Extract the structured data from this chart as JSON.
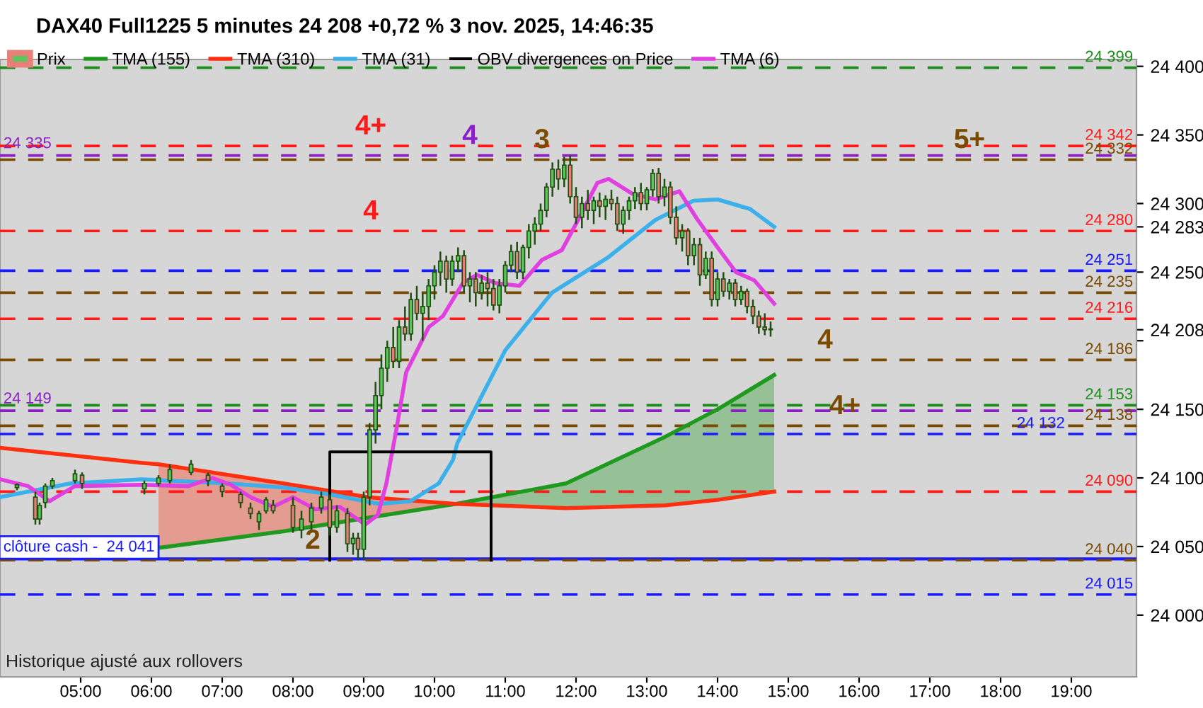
{
  "chart_data": {
    "type": "candlestick",
    "title": "DAX40 Full1225 5 minutes 24 208 +0,72 % 3 nov. 2025, 14:46:35",
    "xlim": [
      3.86,
      19.92
    ],
    "ylim": [
      23955,
      24405
    ],
    "xticks": [
      {
        "value": 5,
        "label": "05:00"
      },
      {
        "value": 6,
        "label": "06:00"
      },
      {
        "value": 7,
        "label": "07:00"
      },
      {
        "value": 8,
        "label": "08:00"
      },
      {
        "value": 9,
        "label": "09:00"
      },
      {
        "value": 10,
        "label": "10:00"
      },
      {
        "value": 11,
        "label": "11:00"
      },
      {
        "value": 12,
        "label": "12:00"
      },
      {
        "value": 13,
        "label": "13:00"
      },
      {
        "value": 14,
        "label": "14:00"
      },
      {
        "value": 15,
        "label": "15:00"
      },
      {
        "value": 16,
        "label": "16:00"
      },
      {
        "value": 17,
        "label": "17:00"
      },
      {
        "value": 18,
        "label": "18:00"
      },
      {
        "value": 19,
        "label": "19:00"
      }
    ],
    "yticks": [
      {
        "value": 24000,
        "label": "24 000"
      },
      {
        "value": 24050,
        "label": "24 050"
      },
      {
        "value": 24100,
        "label": "24 100"
      },
      {
        "value": 24150,
        "label": "24 150"
      },
      {
        "value": 24200,
        "label": null
      },
      {
        "value": 24208,
        "label": "24 208"
      },
      {
        "value": 24250,
        "label": "24 250"
      },
      {
        "value": 24283,
        "label": "24 283"
      },
      {
        "value": 24300,
        "label": "24 300"
      },
      {
        "value": 24350,
        "label": "24 350"
      },
      {
        "value": 24400,
        "label": "24 400"
      }
    ],
    "grid": false,
    "legend": "top",
    "marker": "none",
    "series": [
      {
        "name": "Prix",
        "x": [
          4.1,
          4.36,
          4.42,
          4.5,
          4.6,
          4.92,
          5.02,
          5.9,
          6.1,
          6.26,
          6.56,
          6.8,
          7.0,
          7.26,
          7.4,
          7.52,
          7.62,
          7.72,
          8.0,
          8.12,
          8.26,
          8.4,
          8.52,
          8.62,
          8.77,
          8.85,
          8.92,
          9.0,
          9.083,
          9.167,
          9.25,
          9.333,
          9.417,
          9.5,
          9.583,
          9.667,
          9.75,
          9.833,
          9.917,
          10.0,
          10.083,
          10.167,
          10.25,
          10.333,
          10.417,
          10.5,
          10.583,
          10.667,
          10.75,
          10.833,
          10.917,
          11.0,
          11.083,
          11.167,
          11.25,
          11.333,
          11.417,
          11.5,
          11.583,
          11.667,
          11.75,
          11.833,
          11.917,
          12.0,
          12.083,
          12.167,
          12.25,
          12.333,
          12.417,
          12.5,
          12.583,
          12.667,
          12.75,
          12.833,
          12.917,
          13.0,
          13.083,
          13.167,
          13.25,
          13.333,
          13.417,
          13.5,
          13.583,
          13.667,
          13.75,
          13.833,
          13.917,
          14.0,
          14.083,
          14.167,
          14.25,
          14.333,
          14.417,
          14.5,
          14.583,
          14.667,
          14.75
        ],
        "ohlc": [
          [
            24093,
            24096,
            24091,
            24095
          ],
          [
            24086,
            24090,
            24066,
            24070
          ],
          [
            24070,
            24082,
            24066,
            24080
          ],
          [
            24082,
            24096,
            24078,
            24094
          ],
          [
            24094,
            24100,
            24092,
            24098
          ],
          [
            24098,
            24106,
            24096,
            24103
          ],
          [
            24102,
            24104,
            24092,
            24096
          ],
          [
            24092,
            24098,
            24088,
            24096
          ],
          [
            24096,
            24102,
            24094,
            24100
          ],
          [
            24098,
            24110,
            24096,
            24106
          ],
          [
            24104,
            24113,
            24102,
            24110
          ],
          [
            24102,
            24104,
            24094,
            24098
          ],
          [
            24094,
            24096,
            24086,
            24090
          ],
          [
            24088,
            24090,
            24078,
            24082
          ],
          [
            24078,
            24082,
            24070,
            24074
          ],
          [
            24068,
            24076,
            24062,
            24074
          ],
          [
            24076,
            24086,
            24074,
            24084
          ],
          [
            24080,
            24084,
            24074,
            24076
          ],
          [
            24080,
            24086,
            24060,
            24064
          ],
          [
            24062,
            24076,
            24056,
            24070
          ],
          [
            24068,
            24082,
            24060,
            24078
          ],
          [
            24078,
            24090,
            24074,
            24086
          ],
          [
            24084,
            24088,
            24058,
            24064
          ],
          [
            24064,
            24080,
            24060,
            24076
          ],
          [
            24074,
            24078,
            24046,
            24052
          ],
          [
            24052,
            24060,
            24044,
            24056
          ],
          [
            24056,
            24060,
            24040,
            24048
          ],
          [
            24048,
            24090,
            24040,
            24086
          ],
          [
            24086,
            24140,
            24080,
            24135
          ],
          [
            24135,
            24170,
            24125,
            24160
          ],
          [
            24160,
            24190,
            24150,
            24180
          ],
          [
            24180,
            24200,
            24170,
            24195
          ],
          [
            24195,
            24210,
            24180,
            24185
          ],
          [
            24185,
            24215,
            24180,
            24210
          ],
          [
            24210,
            24225,
            24200,
            24205
          ],
          [
            24205,
            24235,
            24200,
            24230
          ],
          [
            24230,
            24240,
            24215,
            24220
          ],
          [
            24220,
            24235,
            24200,
            24225
          ],
          [
            24225,
            24245,
            24215,
            24240
          ],
          [
            24240,
            24255,
            24230,
            24250
          ],
          [
            24250,
            24265,
            24240,
            24258
          ],
          [
            24258,
            24262,
            24235,
            24245
          ],
          [
            24245,
            24262,
            24240,
            24258
          ],
          [
            24258,
            24268,
            24250,
            24262
          ],
          [
            24262,
            24266,
            24235,
            24240
          ],
          [
            24240,
            24250,
            24228,
            24245
          ],
          [
            24245,
            24250,
            24225,
            24235
          ],
          [
            24235,
            24248,
            24230,
            24242
          ],
          [
            24242,
            24250,
            24225,
            24238
          ],
          [
            24238,
            24245,
            24222,
            24226
          ],
          [
            24226,
            24245,
            24220,
            24240
          ],
          [
            24240,
            24258,
            24235,
            24255
          ],
          [
            24255,
            24270,
            24250,
            24265
          ],
          [
            24265,
            24272,
            24245,
            24250
          ],
          [
            24250,
            24270,
            24245,
            24268
          ],
          [
            24268,
            24285,
            24260,
            24280
          ],
          [
            24280,
            24290,
            24270,
            24285
          ],
          [
            24285,
            24300,
            24280,
            24295
          ],
          [
            24295,
            24315,
            24290,
            24312
          ],
          [
            24312,
            24330,
            24305,
            24325
          ],
          [
            24325,
            24332,
            24310,
            24318
          ],
          [
            24318,
            24334,
            24312,
            24328
          ],
          [
            24328,
            24335,
            24300,
            24305
          ],
          [
            24305,
            24312,
            24285,
            24290
          ],
          [
            24290,
            24305,
            24282,
            24300
          ],
          [
            24300,
            24310,
            24288,
            24295
          ],
          [
            24295,
            24305,
            24285,
            24302
          ],
          [
            24302,
            24308,
            24290,
            24298
          ],
          [
            24298,
            24306,
            24288,
            24303
          ],
          [
            24303,
            24310,
            24295,
            24300
          ],
          [
            24300,
            24305,
            24280,
            24285
          ],
          [
            24285,
            24298,
            24278,
            24295
          ],
          [
            24295,
            24305,
            24288,
            24302
          ],
          [
            24302,
            24312,
            24296,
            24308
          ],
          [
            24308,
            24315,
            24295,
            24300
          ],
          [
            24300,
            24312,
            24295,
            24310
          ],
          [
            24310,
            24325,
            24305,
            24322
          ],
          [
            24322,
            24326,
            24300,
            24305
          ],
          [
            24305,
            24318,
            24298,
            24312
          ],
          [
            24312,
            24316,
            24285,
            24290
          ],
          [
            24290,
            24298,
            24270,
            24275
          ],
          [
            24275,
            24285,
            24265,
            24280
          ],
          [
            24280,
            24282,
            24255,
            24262
          ],
          [
            24262,
            24275,
            24255,
            24270
          ],
          [
            24270,
            24275,
            24240,
            24248
          ],
          [
            24248,
            24265,
            24245,
            24260
          ],
          [
            24260,
            24265,
            24225,
            24230
          ],
          [
            24230,
            24250,
            24225,
            24245
          ],
          [
            24245,
            24250,
            24232,
            24236
          ],
          [
            24236,
            24245,
            24230,
            24242
          ],
          [
            24242,
            24245,
            24225,
            24230
          ],
          [
            24230,
            24240,
            24226,
            24236
          ],
          [
            24236,
            24238,
            24220,
            24225
          ],
          [
            24225,
            24230,
            24212,
            24218
          ],
          [
            24218,
            24222,
            24205,
            24210
          ],
          [
            24210,
            24220,
            24204,
            24208
          ],
          [
            24208,
            24214,
            24203,
            24208
          ]
        ]
      },
      {
        "name": "TMA (155)",
        "type": "line",
        "color": "#1f9a1f",
        "x": [
          6.1,
          7.86,
          9.06,
          10.3,
          11.86,
          13.26,
          14.0,
          14.8
        ],
        "values": [
          24049,
          24061,
          24071,
          24081,
          24096,
          24130,
          24150,
          24175
        ],
        "lower": [
          null,
          null,
          null,
          24081,
          24078,
          24080,
          24084,
          24090
        ],
        "upper": [
          null,
          null,
          null,
          24081,
          24096,
          24130,
          24150,
          24175
        ]
      },
      {
        "name": "TMA (310)",
        "type": "line",
        "color": "#ff3010",
        "x": [
          3.86,
          5.86,
          6.1,
          7.86,
          9.06,
          10.3,
          11.86,
          13.26,
          14.0,
          14.8
        ],
        "values": [
          24122,
          24111,
          24110,
          24096,
          24086,
          24081,
          24078,
          24080,
          24084,
          24090
        ],
        "upper": [
          null,
          null,
          24110,
          24096,
          24086,
          24081,
          null,
          null,
          null,
          null
        ],
        "lower": [
          null,
          null,
          24049,
          24061,
          24071,
          24081,
          null,
          null,
          null,
          null
        ]
      },
      {
        "name": "TMA (31)",
        "type": "line",
        "color": "#3bb0ea",
        "x": [
          3.86,
          4.86,
          5.86,
          7.06,
          7.86,
          8.52,
          9.22,
          9.66,
          10.06,
          10.26,
          10.32,
          11.0,
          11.66,
          12.46,
          13.12,
          13.66,
          14.0,
          14.46,
          14.8
        ],
        "values": [
          24086,
          24096,
          24099,
          24096,
          24093,
          24088,
          24081,
          24083,
          24096,
          24113,
          24125,
          24193,
          24235,
          24261,
          24288,
          24302,
          24303,
          24296,
          24283
        ]
      },
      {
        "name": "OBV divergences on Price",
        "type": "line",
        "color": "#000000",
        "x": [
          8.52,
          8.521,
          10.799,
          10.8
        ],
        "values": [
          24040,
          24119,
          24119,
          24040
        ]
      },
      {
        "name": "TMA (6)",
        "type": "line",
        "color": "#e040e0",
        "x": [
          3.86,
          4.26,
          4.56,
          4.72,
          4.92,
          5.86,
          6.52,
          6.86,
          7.12,
          7.4,
          7.72,
          8.0,
          8.32,
          8.66,
          9.02,
          9.2,
          9.32,
          9.46,
          9.6,
          9.92,
          10.12,
          10.4,
          10.6,
          10.86,
          11.2,
          11.52,
          11.8,
          12.06,
          12.3,
          12.46,
          12.8,
          13.12,
          13.46,
          13.72,
          14.0,
          14.26,
          14.52,
          14.8
        ],
        "values": [
          24099,
          24094,
          24083,
          24088,
          24094,
          24095,
          24094,
          24100,
          24095,
          24086,
          24079,
          24086,
          24077,
          24079,
          24066,
          24073,
          24096,
          24135,
          24177,
          24210,
          24218,
          24242,
          24248,
          24242,
          24240,
          24259,
          24266,
          24291,
          24315,
          24318,
          24307,
          24303,
          24309,
          24288,
          24268,
          24250,
          24244,
          24227
        ]
      }
    ],
    "ref_lines": [
      {
        "axis": "y",
        "value": 24399,
        "label": "24 399",
        "color": "#1a8c1a",
        "line_style": "dashed"
      },
      {
        "axis": "y",
        "value": 24342,
        "label": "24 342",
        "color": "#ff1a1a",
        "line_style": "dashed"
      },
      {
        "axis": "y",
        "value": 24332,
        "label": "24 332",
        "color": "#7a4a00",
        "line_style": "dashed"
      },
      {
        "axis": "y",
        "value": 24335,
        "label": "24 335",
        "color": "#8a1fc4",
        "line_style": "dashed"
      },
      {
        "axis": "y",
        "value": 24280,
        "label": "24 280",
        "color": "#ff1a1a",
        "line_style": "dashed"
      },
      {
        "axis": "y",
        "value": 24251,
        "label": "24 251",
        "color": "#1a1aff",
        "line_style": "dashed"
      },
      {
        "axis": "y",
        "value": 24235,
        "label": "24 235",
        "color": "#7a4a00",
        "line_style": "dashed"
      },
      {
        "axis": "y",
        "value": 24216,
        "label": "24 216",
        "color": "#ff1a1a",
        "line_style": "dashed"
      },
      {
        "axis": "y",
        "value": 24186,
        "label": "24 186",
        "color": "#7a4a00",
        "line_style": "dashed"
      },
      {
        "axis": "y",
        "value": 24153,
        "label": "24 153",
        "color": "#1a8c1a",
        "line_style": "dashed"
      },
      {
        "axis": "y",
        "value": 24138,
        "label": "24 138",
        "color": "#7a4a00",
        "line_style": "dashed"
      },
      {
        "axis": "y",
        "value": 24149,
        "label": "24 149",
        "color": "#8a1fc4",
        "line_style": "dashed"
      },
      {
        "axis": "y",
        "value": 24132,
        "label": "24 132",
        "color": "#1a1aff",
        "line_style": "dashed"
      },
      {
        "axis": "y",
        "value": 24090,
        "label": "24 090",
        "color": "#ff1a1a",
        "line_style": "dashed"
      },
      {
        "axis": "y",
        "value": 24041,
        "label": "clôture cash -  24 041",
        "color": "#1a1aff",
        "line_style": "solid"
      },
      {
        "axis": "y",
        "value": 24040,
        "label": "24 040",
        "color": "#7a4a00",
        "line_style": "dashed"
      },
      {
        "axis": "y",
        "value": 24015,
        "label": "24 015",
        "color": "#1a1aff",
        "line_style": "dashed"
      }
    ],
    "annotations": [
      {
        "text": "4+",
        "x": 9.1,
        "y": 24342
      },
      {
        "text": "4",
        "x": 10.5,
        "y": 24335
      },
      {
        "text": "3",
        "x": 11.52,
        "y": 24332
      },
      {
        "text": "4",
        "x": 9.1,
        "y": 24280
      },
      {
        "text": "5+",
        "x": 17.56,
        "y": 24332
      },
      {
        "text": "4",
        "x": 15.52,
        "y": 24186
      },
      {
        "text": "4+",
        "x": 15.8,
        "y": 24138
      },
      {
        "text": "2",
        "x": 8.28,
        "y": 24040
      },
      "Historique ajusté aux rollovers"
    ]
  }
}
